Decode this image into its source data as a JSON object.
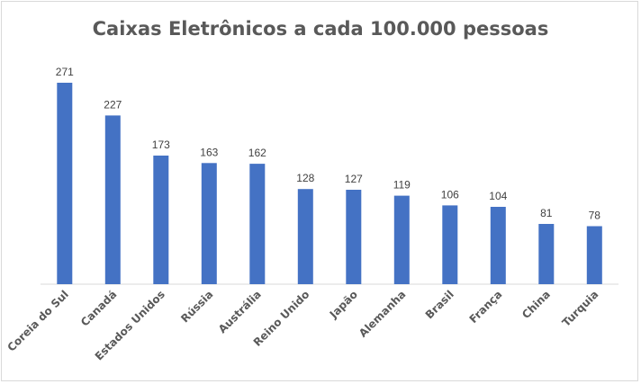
{
  "chart_data": {
    "type": "bar",
    "title": "Caixas Eletrônicos a cada 100.000 pessoas",
    "categories": [
      "Coreia do Sul",
      "Canadá",
      "Estados Unidos",
      "Rússia",
      "Austrália",
      "Reino Unido",
      "Japão",
      "Alemanha",
      "Brasil",
      "França",
      "China",
      "Turquia"
    ],
    "values": [
      271,
      227,
      173,
      163,
      162,
      128,
      127,
      119,
      106,
      104,
      81,
      78
    ],
    "xlabel": "",
    "ylabel": "",
    "ylim": [
      0,
      300
    ],
    "grid": false,
    "legend": "none",
    "bar_color": "#4472c4"
  }
}
